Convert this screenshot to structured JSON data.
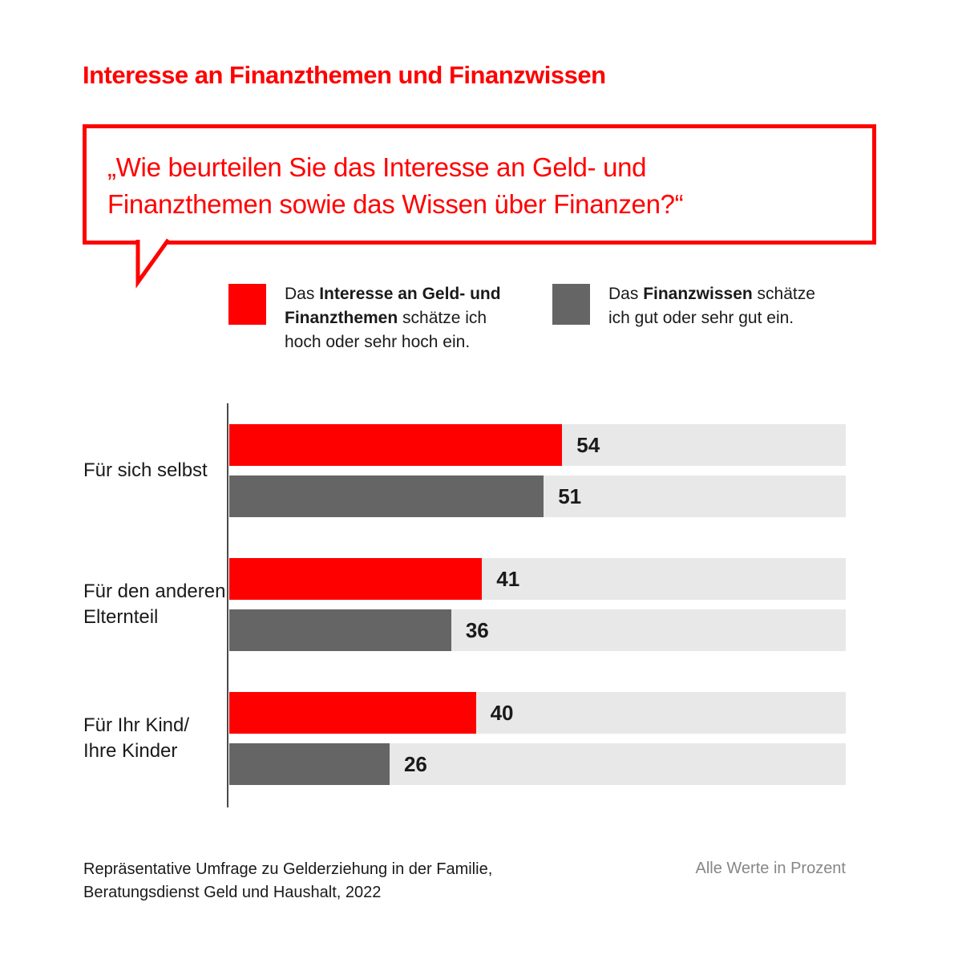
{
  "title": "Interesse an Finanzthemen und Finanzwissen",
  "question_bubble": {
    "text": "„Wie beurteilen Sie das Interesse an Geld- und\nFinanzthemen sowie das Wissen über Finanzen?“"
  },
  "legend": [
    {
      "prefix": "Das ",
      "bold": "Interesse an Geld- und Finanzthemen",
      "suffix": " schätze ich hoch oder sehr hoch ein.",
      "color": "#ff0000"
    },
    {
      "prefix": "Das ",
      "bold": "Finanzwissen",
      "suffix": " schätze ich gut oder sehr gut ein.",
      "color": "#656565"
    }
  ],
  "chart_data": {
    "type": "bar",
    "orientation": "horizontal",
    "categories": [
      "Für sich selbst",
      "Für den anderen\nElternteil",
      "Für Ihr Kind/\nIhre Kinder"
    ],
    "series": [
      {
        "name": "Das Interesse an Geld- und Finanzthemen schätze ich hoch oder sehr hoch ein.",
        "color": "#ff0000",
        "values": [
          54,
          41,
          40
        ]
      },
      {
        "name": "Das Finanzwissen schätze ich gut oder sehr gut ein.",
        "color": "#656565",
        "values": [
          51,
          36,
          26
        ]
      }
    ],
    "xlim": [
      0,
      100
    ],
    "unit": "Prozent",
    "value_labels": true,
    "legend_position": "top",
    "grid": false
  },
  "footer": {
    "source": "Repräsentative Umfrage zu Gelderziehung in der Familie,\nBeratungsdienst Geld und Haushalt, 2022",
    "note": "Alle Werte in Prozent"
  },
  "colors": {
    "accent_red": "#ff0000",
    "bar_gray": "#656565",
    "track_gray": "#e8e8e8",
    "text_dark": "#1a1a1a",
    "muted_gray": "#878787",
    "axis_gray": "#4a4a4a"
  }
}
